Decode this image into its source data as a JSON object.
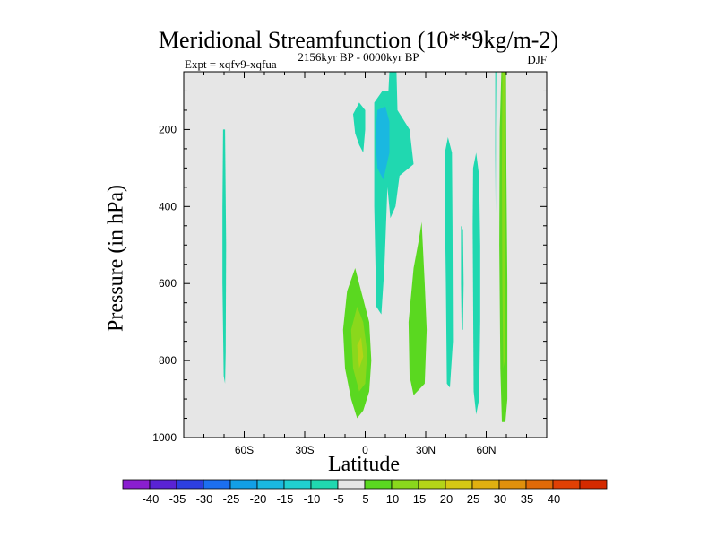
{
  "chart_data": {
    "type": "heatmap",
    "title": "Meridional Streamfunction (10**9kg/m-2)",
    "subtitle_left": "Expt = xqfv9-xqfua",
    "subtitle_center": "2156kyr BP - 0000kyr BP",
    "subtitle_right": "DJF",
    "xlabel": "Latitude",
    "ylabel": "Pressure (in hPa)",
    "xlim": [
      -90,
      90
    ],
    "ylim": [
      1000,
      50
    ],
    "x_ticks": [
      {
        "value": -60,
        "label": "60S"
      },
      {
        "value": -30,
        "label": "30S"
      },
      {
        "value": 0,
        "label": "0"
      },
      {
        "value": 30,
        "label": "30N"
      },
      {
        "value": 60,
        "label": "60N"
      }
    ],
    "y_ticks": [
      {
        "value": 200,
        "label": "200"
      },
      {
        "value": 400,
        "label": "400"
      },
      {
        "value": 600,
        "label": "600"
      },
      {
        "value": 800,
        "label": "800"
      },
      {
        "value": 1000,
        "label": "1000"
      }
    ],
    "background_color": "#e6e6e6",
    "colorbar": {
      "colors": [
        "#8a1ed0",
        "#5a23d4",
        "#2d3ee0",
        "#1c6ff0",
        "#129fe6",
        "#1ab8e0",
        "#20cfd0",
        "#20d8b0",
        "#e6e6e6",
        "#5ad820",
        "#8ad81c",
        "#b4d418",
        "#d6c814",
        "#e0b010",
        "#e0900c",
        "#e06a08",
        "#e04004",
        "#d42a00"
      ],
      "labels": [
        "-40",
        "-35",
        "-30",
        "-25",
        "-20",
        "-15",
        "-10",
        "-5",
        "5",
        "10",
        "15",
        "20",
        "25",
        "30",
        "35",
        "40"
      ]
    },
    "regions": [
      {
        "level": -5,
        "color": "#20d8b0",
        "points": [
          [
            -70.5,
            200
          ],
          [
            -69.5,
            200
          ],
          [
            -69.0,
            500
          ],
          [
            -69.2,
            780
          ],
          [
            -69.5,
            860
          ],
          [
            -70.2,
            840
          ],
          [
            -70.8,
            600
          ],
          [
            -70.8,
            400
          ]
        ]
      },
      {
        "level": -5,
        "color": "#20d8b0",
        "points": [
          [
            12,
            50
          ],
          [
            15.5,
            50
          ],
          [
            16,
            150
          ],
          [
            22,
            200
          ],
          [
            24,
            290
          ],
          [
            17,
            320
          ],
          [
            15,
            400
          ],
          [
            12.5,
            430
          ],
          [
            11,
            350
          ],
          [
            9.5,
            560
          ],
          [
            8,
            680
          ],
          [
            5.5,
            660
          ],
          [
            4.5,
            400
          ],
          [
            4.5,
            130
          ],
          [
            8.5,
            100
          ],
          [
            11.5,
            100
          ]
        ]
      },
      {
        "level": -5,
        "color": "#20d8b0",
        "points": [
          [
            -6,
            160
          ],
          [
            -3,
            130
          ],
          [
            0,
            150
          ],
          [
            0,
            200
          ],
          [
            -1,
            260
          ],
          [
            -3,
            240
          ],
          [
            -5,
            210
          ]
        ]
      },
      {
        "level": -10,
        "color": "#1ab8e0",
        "points": [
          [
            6,
            150
          ],
          [
            10,
            140
          ],
          [
            12,
            180
          ],
          [
            12,
            260
          ],
          [
            9,
            330
          ],
          [
            6,
            300
          ],
          [
            5,
            220
          ]
        ]
      },
      {
        "level": 5,
        "color": "#5ad820",
        "points": [
          [
            -11,
            720
          ],
          [
            -9,
            620
          ],
          [
            -5,
            560
          ],
          [
            -2,
            620
          ],
          [
            2,
            700
          ],
          [
            3,
            800
          ],
          [
            2,
            880
          ],
          [
            -1,
            930
          ],
          [
            -4,
            950
          ],
          [
            -7,
            900
          ],
          [
            -10,
            820
          ]
        ]
      },
      {
        "level": 10,
        "color": "#8ad81c",
        "points": [
          [
            -7,
            720
          ],
          [
            -4,
            660
          ],
          [
            -1,
            700
          ],
          [
            1,
            780
          ],
          [
            0,
            860
          ],
          [
            -3,
            880
          ],
          [
            -6,
            820
          ]
        ]
      },
      {
        "level": 15,
        "color": "#b4d418",
        "points": [
          [
            -4,
            760
          ],
          [
            -2,
            740
          ],
          [
            -1,
            790
          ],
          [
            -3,
            820
          ]
        ]
      },
      {
        "level": 5,
        "color": "#5ad820",
        "points": [
          [
            21.5,
            700
          ],
          [
            24,
            560
          ],
          [
            26.5,
            490
          ],
          [
            28,
            440
          ],
          [
            29.5,
            600
          ],
          [
            30.5,
            720
          ],
          [
            29.5,
            860
          ],
          [
            24,
            890
          ],
          [
            22,
            840
          ]
        ]
      },
      {
        "level": -5,
        "color": "#20d8b0",
        "points": [
          [
            39.5,
            260
          ],
          [
            41,
            220
          ],
          [
            43,
            260
          ],
          [
            43.3,
            450
          ],
          [
            43.5,
            750
          ],
          [
            42,
            870
          ],
          [
            40.5,
            860
          ],
          [
            40,
            600
          ],
          [
            39.5,
            400
          ]
        ]
      },
      {
        "level": -5,
        "color": "#20d8b0",
        "points": [
          [
            47.5,
            450
          ],
          [
            48.5,
            460
          ],
          [
            48.8,
            600
          ],
          [
            48.5,
            720
          ],
          [
            47.8,
            720
          ],
          [
            47.5,
            600
          ]
        ]
      },
      {
        "level": -5,
        "color": "#20d8b0",
        "points": [
          [
            53.5,
            300
          ],
          [
            55,
            260
          ],
          [
            56.5,
            320
          ],
          [
            57,
            500
          ],
          [
            57,
            700
          ],
          [
            56.5,
            900
          ],
          [
            55,
            940
          ],
          [
            53.8,
            880
          ],
          [
            53.5,
            650
          ],
          [
            53.3,
            450
          ]
        ]
      },
      {
        "level": -5,
        "color": "#20d8b0",
        "points": [
          [
            64.5,
            50
          ],
          [
            65,
            50
          ],
          [
            64.8,
            200
          ],
          [
            64.7,
            420
          ],
          [
            64.5,
            260
          ]
        ]
      },
      {
        "level": 5,
        "color": "#5ad820",
        "points": [
          [
            67.5,
            50
          ],
          [
            69.8,
            50
          ],
          [
            70,
            300
          ],
          [
            70.5,
            600
          ],
          [
            70.5,
            900
          ],
          [
            69.5,
            960
          ],
          [
            67.8,
            960
          ],
          [
            67,
            820
          ],
          [
            66.5,
            500
          ],
          [
            66.7,
            200
          ]
        ]
      },
      {
        "level": 10,
        "color": "#8ad81c",
        "points": [
          [
            68,
            50
          ],
          [
            69.2,
            50
          ],
          [
            69.4,
            400
          ],
          [
            69.2,
            800
          ],
          [
            68.5,
            820
          ],
          [
            68,
            600
          ],
          [
            67.8,
            300
          ]
        ]
      }
    ]
  }
}
